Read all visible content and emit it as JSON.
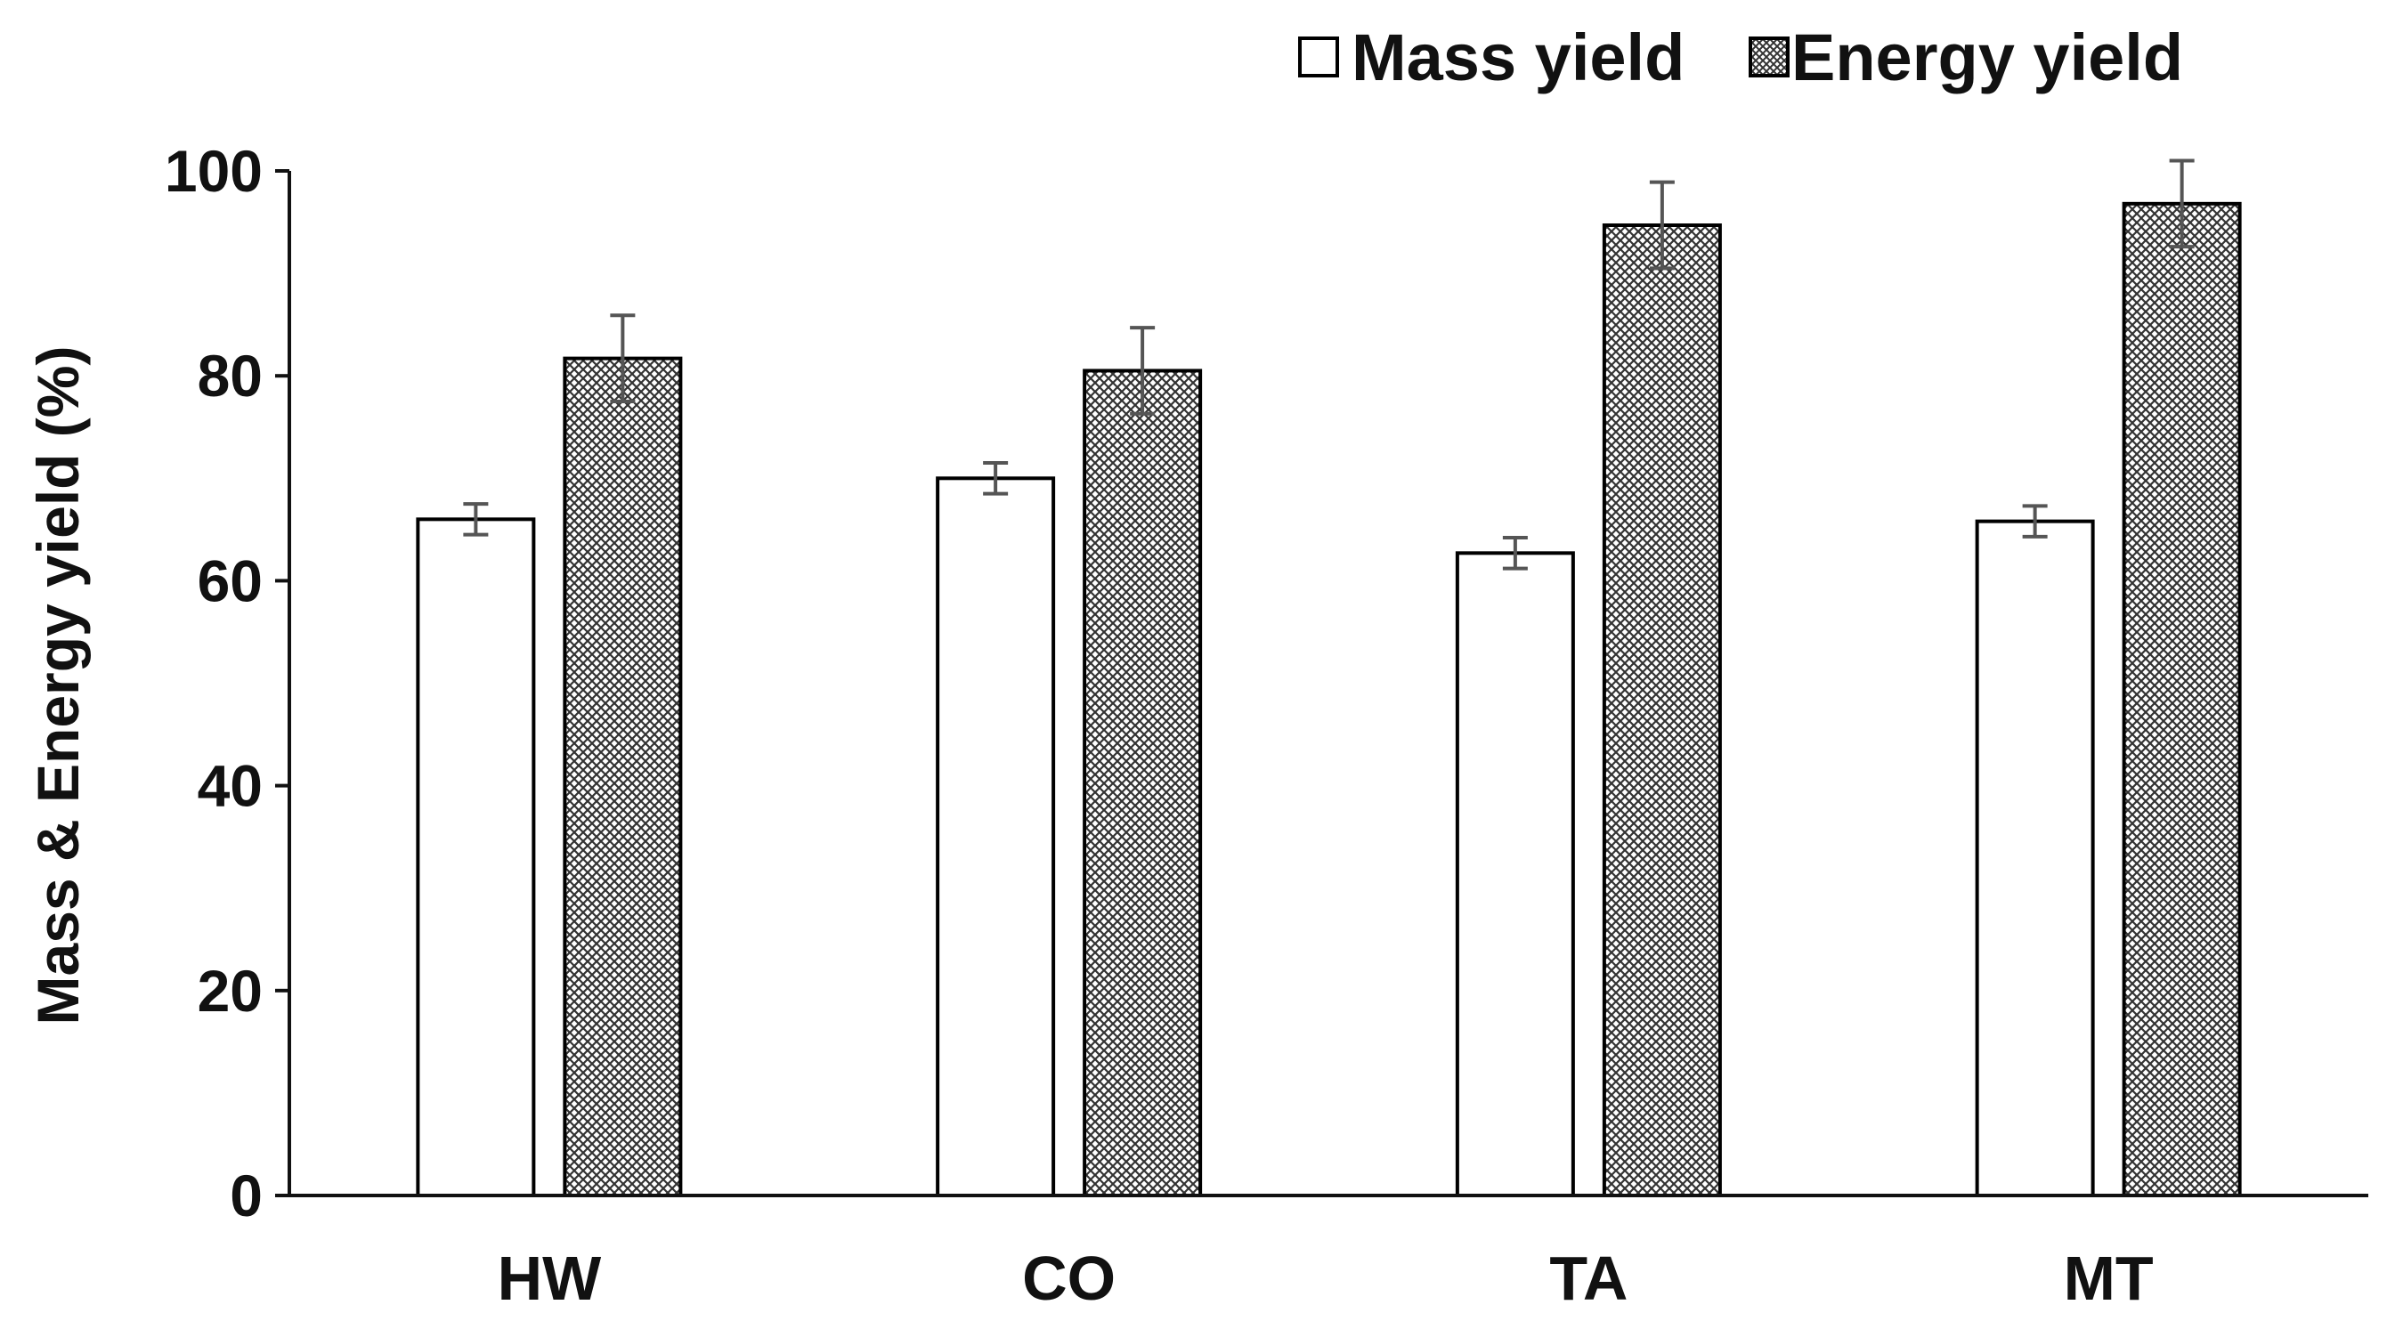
{
  "chart_data": {
    "type": "bar",
    "title": "",
    "xlabel": "",
    "ylabel": "Mass & Energy yield (%)",
    "ylim": [
      0,
      100
    ],
    "yticks": [
      0,
      20,
      40,
      60,
      80,
      100
    ],
    "grid": false,
    "legend_position": "top-right",
    "categories": [
      "HW",
      "CO",
      "TA",
      "MT"
    ],
    "series": [
      {
        "name": "Mass yield",
        "fill": "white",
        "values": [
          66,
          70,
          62.7,
          65.8
        ],
        "errors": [
          1.5,
          1.5,
          1.5,
          1.5
        ]
      },
      {
        "name": "Energy yield",
        "fill": "crosshatch",
        "values": [
          81.7,
          80.5,
          94.7,
          96.8
        ],
        "errors": [
          4.2,
          4.2,
          4.2,
          4.2
        ]
      }
    ]
  },
  "colors": {
    "axis": "#111111",
    "bar_outline": "#000000",
    "error_bar": "#555555",
    "hatch": "#333333",
    "background": "#ffffff"
  }
}
